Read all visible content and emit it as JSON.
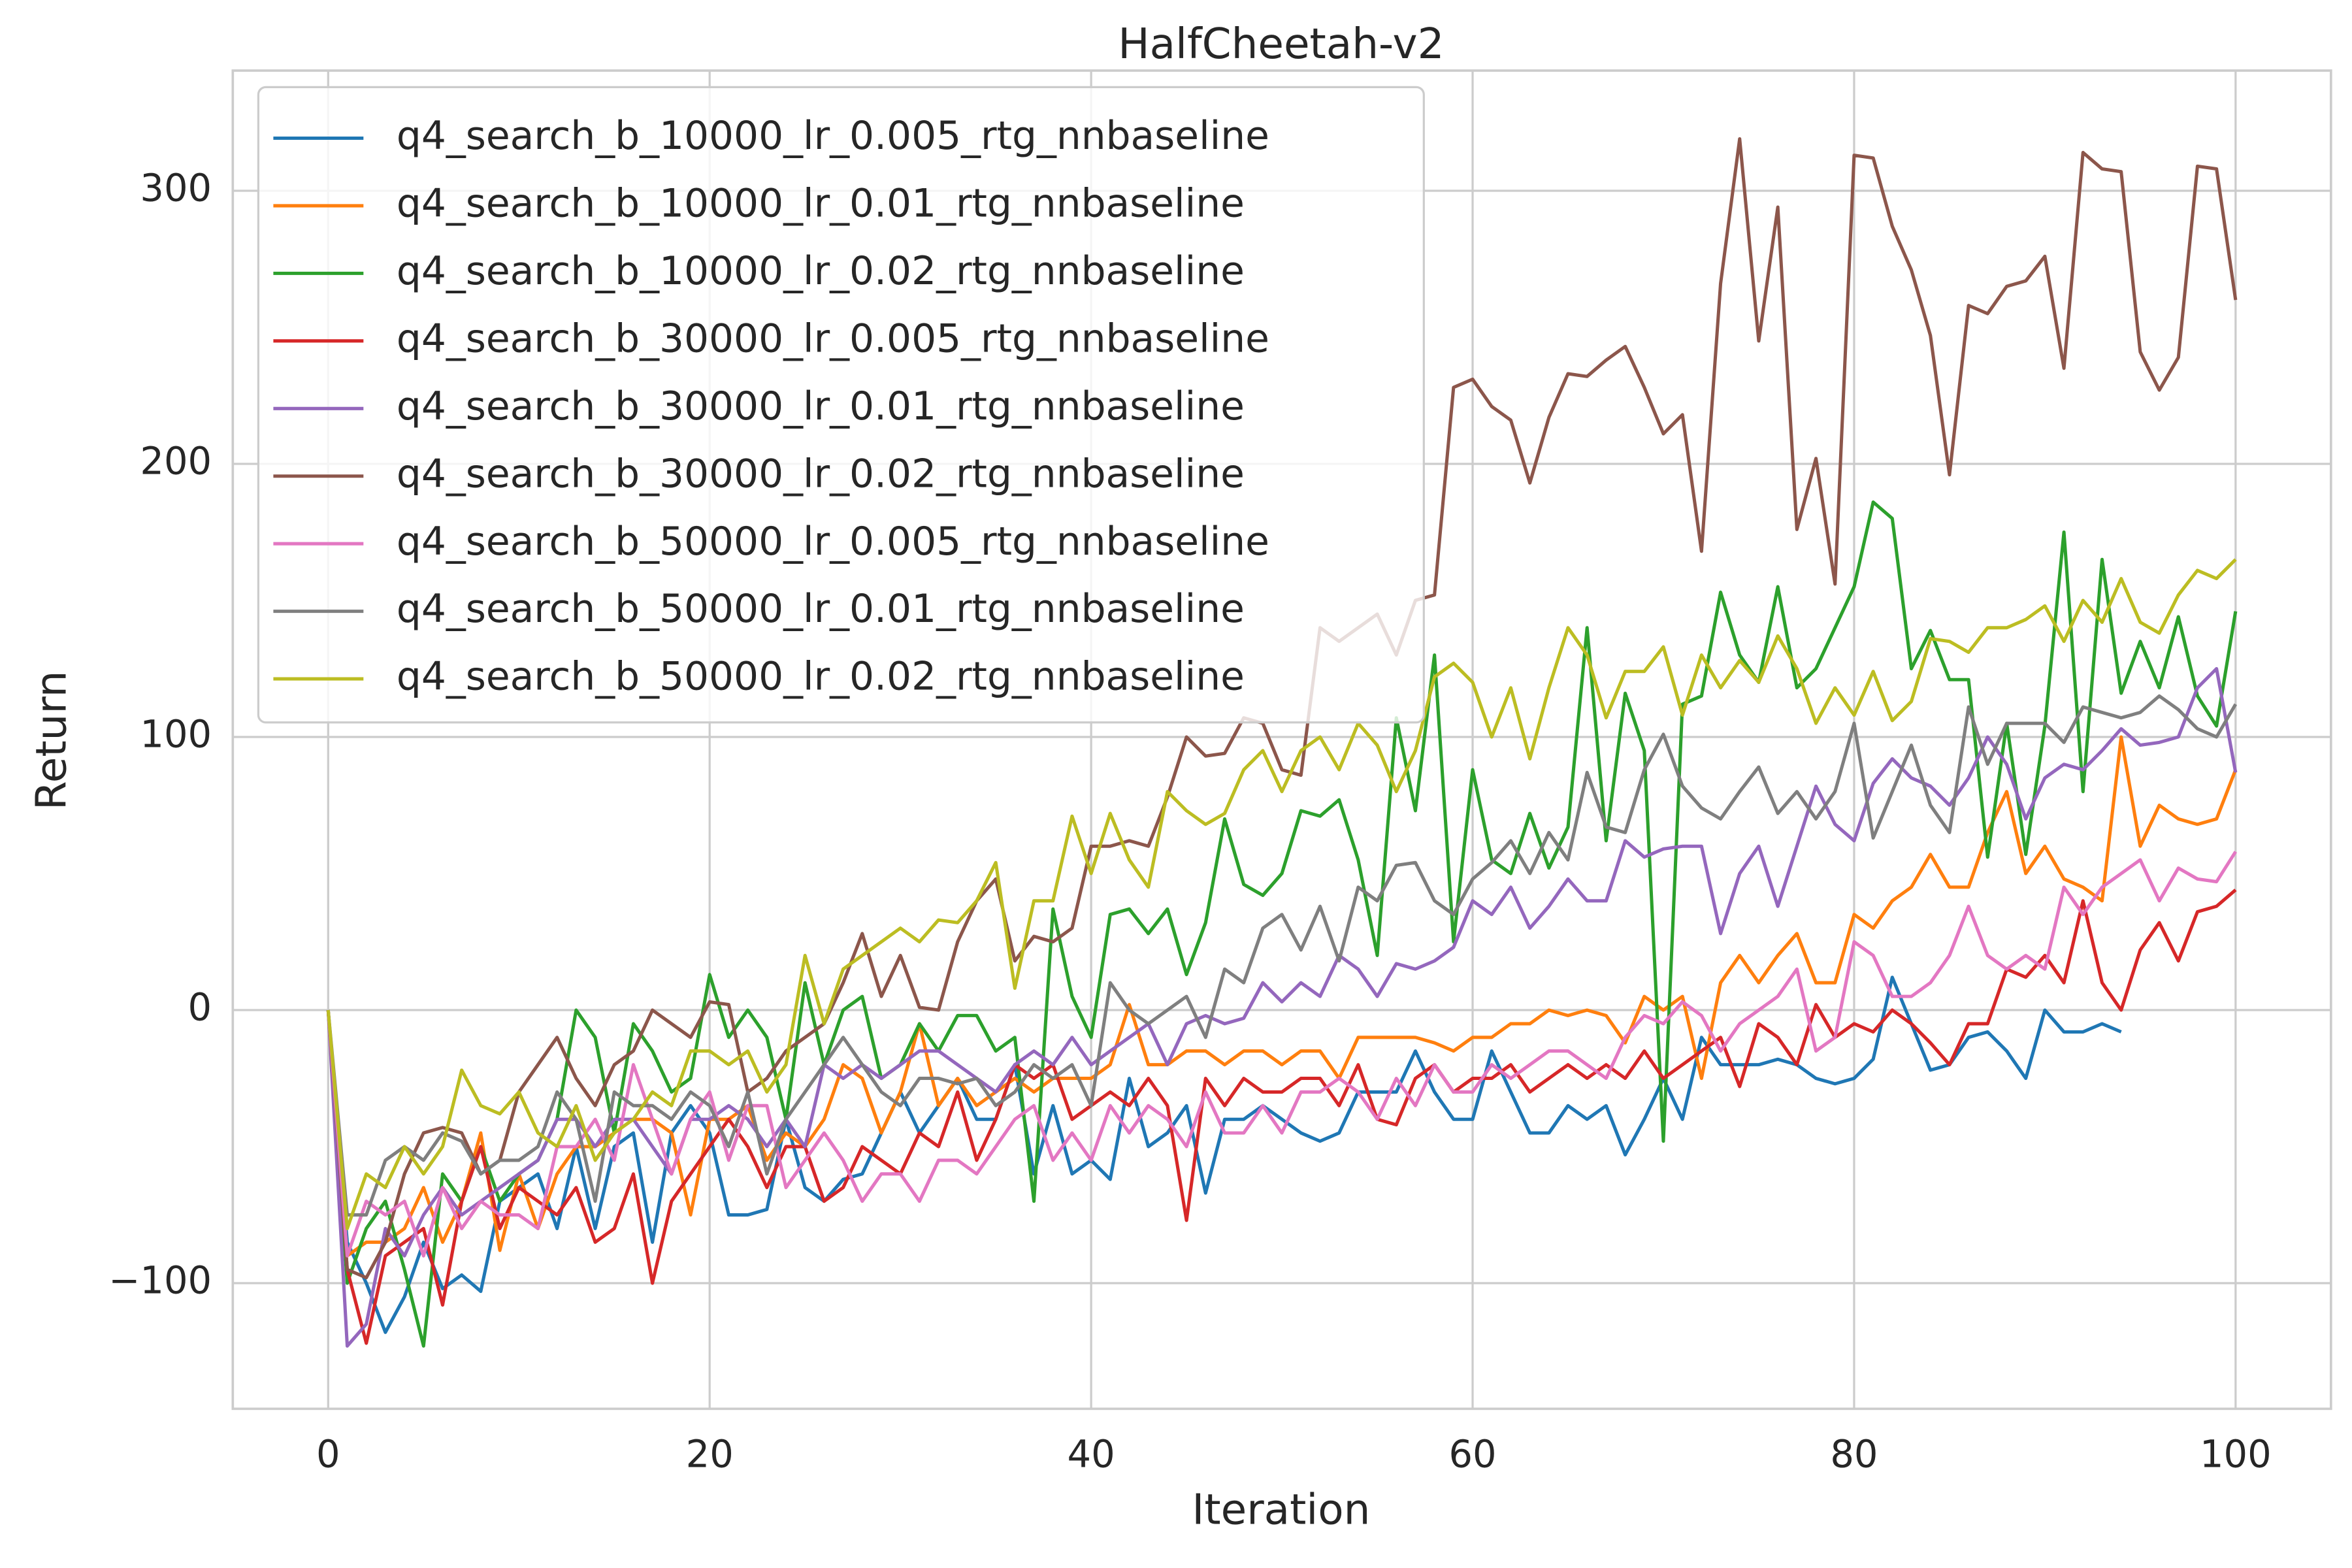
{
  "chart_data": {
    "type": "line",
    "title": "HalfCheetah-v2",
    "xlabel": "Iteration",
    "ylabel": "Return",
    "xlim": [
      -5,
      105
    ],
    "xticks": [
      0,
      20,
      40,
      60,
      80,
      100
    ],
    "ylim": [
      -146,
      344
    ],
    "yticks": [
      {
        "value": -100,
        "label": "−100"
      },
      0,
      100,
      200,
      300
    ],
    "grid": true,
    "legend": "upper left",
    "x": [
      0,
      1,
      2,
      3,
      4,
      5,
      6,
      7,
      8,
      9,
      10,
      11,
      12,
      13,
      14,
      15,
      16,
      17,
      18,
      19,
      20,
      21,
      22,
      23,
      24,
      25,
      26,
      27,
      28,
      29,
      30,
      31,
      32,
      33,
      34,
      35,
      36,
      37,
      38,
      39,
      40,
      41,
      42,
      43,
      44,
      45,
      46,
      47,
      48,
      49,
      50,
      51,
      52,
      53,
      54,
      55,
      56,
      57,
      58,
      59,
      60,
      61,
      62,
      63,
      64,
      65,
      66,
      67,
      68,
      69,
      70,
      71,
      72,
      73,
      74,
      75,
      76,
      77,
      78,
      79,
      80,
      81,
      82,
      83,
      84,
      85,
      86,
      87,
      88,
      89,
      90,
      91,
      92,
      93,
      94,
      95,
      96,
      97,
      98,
      99,
      100
    ],
    "series": [
      {
        "name": "q4_search_b_10000_lr_0.005_rtg_nnbaseline",
        "color": "#1f77b4",
        "values": [
          0,
          -85,
          -100,
          -118,
          -105,
          -85,
          -102,
          -97,
          -103,
          -70,
          -65,
          -60,
          -80,
          -50,
          -80,
          -50,
          -45,
          -85,
          -45,
          -35,
          -45,
          -75,
          -75,
          -73,
          -40,
          -65,
          -70,
          -62,
          -60,
          -45,
          -30,
          -45,
          -35,
          -25,
          -40,
          -40,
          -20,
          -60,
          -35,
          -60,
          -55,
          -62,
          -25,
          -50,
          -45,
          -35,
          -67,
          -40,
          -40,
          -35,
          -40,
          -45,
          -48,
          -45,
          -30,
          -30,
          -30,
          -15,
          -30,
          -40,
          -40,
          -15,
          -30,
          -45,
          -45,
          -35,
          -40,
          -35,
          -53,
          -40,
          -25,
          -40,
          -10,
          -20,
          -20,
          -20,
          -18,
          -20,
          -25,
          -27,
          -25,
          -18,
          12,
          -5,
          -22,
          -20,
          -10,
          -8,
          -15,
          -25,
          0,
          -8,
          -8,
          -5,
          -8,
          null,
          null,
          null,
          null,
          null,
          null
        ]
      },
      {
        "name": "q4_search_b_10000_lr_0.01_rtg_nnbaseline",
        "color": "#ff7f0e",
        "values": [
          0,
          -90,
          -85,
          -85,
          -80,
          -65,
          -85,
          -70,
          -45,
          -88,
          -60,
          -80,
          -60,
          -50,
          -50,
          -45,
          -40,
          -40,
          -45,
          -75,
          -40,
          -40,
          -35,
          -55,
          -45,
          -50,
          -40,
          -20,
          -25,
          -45,
          -30,
          -5,
          -35,
          -25,
          -35,
          -30,
          -25,
          -30,
          -25,
          -25,
          -25,
          -20,
          2,
          -20,
          -20,
          -15,
          -15,
          -20,
          -15,
          -15,
          -20,
          -15,
          -15,
          -25,
          -10,
          -10,
          -10,
          -10,
          -12,
          -15,
          -10,
          -10,
          -5,
          -5,
          0,
          -2,
          0,
          -2,
          -12,
          5,
          0,
          5,
          -25,
          10,
          20,
          10,
          20,
          28,
          10,
          10,
          35,
          30,
          40,
          45,
          57,
          45,
          45,
          65,
          80,
          50,
          60,
          48,
          45,
          40,
          100,
          60,
          75,
          70,
          68,
          70,
          88
        ]
      },
      {
        "name": "q4_search_b_10000_lr_0.02_rtg_nnbaseline",
        "color": "#2ca02c",
        "values": [
          0,
          -100,
          -80,
          -70,
          -95,
          -123,
          -60,
          -70,
          -50,
          -70,
          -60,
          -55,
          -40,
          0,
          -10,
          -45,
          -5,
          -15,
          -30,
          -25,
          13,
          -10,
          0,
          -10,
          -40,
          10,
          -20,
          0,
          5,
          -25,
          -20,
          -5,
          -15,
          -2,
          -2,
          -15,
          -10,
          -70,
          37,
          5,
          -10,
          35,
          37,
          28,
          37,
          13,
          32,
          70,
          46,
          42,
          50,
          73,
          71,
          77,
          55,
          20,
          107,
          73,
          130,
          25,
          88,
          55,
          50,
          72,
          52,
          67,
          140,
          62,
          116,
          95,
          -48,
          112,
          115,
          153,
          130,
          120,
          155,
          118,
          125,
          140,
          155,
          186,
          180,
          125,
          139,
          121,
          121,
          56,
          105,
          57,
          104,
          175,
          80,
          165,
          116,
          135,
          118,
          144,
          115,
          104,
          146
        ]
      },
      {
        "name": "q4_search_b_30000_lr_0.005_rtg_nnbaseline",
        "color": "#d62728",
        "values": [
          0,
          -95,
          -122,
          -90,
          -85,
          -80,
          -108,
          -70,
          -50,
          -80,
          -65,
          -70,
          -75,
          -65,
          -85,
          -80,
          -60,
          -100,
          -70,
          -60,
          -50,
          -40,
          -50,
          -65,
          -50,
          -50,
          -70,
          -65,
          -50,
          -55,
          -60,
          -45,
          -50,
          -30,
          -55,
          -40,
          -20,
          -25,
          -20,
          -40,
          -35,
          -30,
          -35,
          -25,
          -35,
          -77,
          -25,
          -35,
          -25,
          -30,
          -30,
          -25,
          -25,
          -35,
          -20,
          -40,
          -42,
          -25,
          -20,
          -30,
          -25,
          -25,
          -20,
          -30,
          -25,
          -20,
          -25,
          -20,
          -25,
          -15,
          -25,
          -20,
          -15,
          -10,
          -28,
          -5,
          -10,
          -20,
          2,
          -10,
          -5,
          -8,
          0,
          -5,
          -12,
          -20,
          -5,
          -5,
          15,
          12,
          20,
          10,
          40,
          10,
          0,
          22,
          32,
          18,
          36,
          38,
          44
        ]
      },
      {
        "name": "q4_search_b_30000_lr_0.01_rtg_nnbaseline",
        "color": "#9467bd",
        "values": [
          0,
          -123,
          -115,
          -80,
          -90,
          -75,
          -65,
          -75,
          -70,
          -65,
          -60,
          -55,
          -40,
          -40,
          -50,
          -40,
          -40,
          -50,
          -60,
          -40,
          -40,
          -35,
          -40,
          -50,
          -40,
          -50,
          -20,
          -25,
          -20,
          -25,
          -20,
          -15,
          -15,
          -20,
          -25,
          -30,
          -20,
          -15,
          -20,
          -10,
          -20,
          -15,
          -10,
          -5,
          -20,
          -5,
          -2,
          -5,
          -3,
          10,
          3,
          10,
          5,
          20,
          15,
          5,
          17,
          15,
          18,
          23,
          40,
          35,
          45,
          30,
          38,
          48,
          40,
          40,
          62,
          56,
          59,
          60,
          60,
          28,
          50,
          60,
          38,
          60,
          82,
          68,
          62,
          83,
          92,
          85,
          82,
          75,
          85,
          100,
          90,
          70,
          85,
          90,
          88,
          95,
          103,
          97,
          98,
          100,
          118,
          125,
          87
        ]
      },
      {
        "name": "q4_search_b_30000_lr_0.02_rtg_nnbaseline",
        "color": "#8c564b",
        "values": [
          0,
          -95,
          -98,
          -85,
          -60,
          -45,
          -43,
          -45,
          -60,
          -55,
          -30,
          -20,
          -10,
          -25,
          -35,
          -20,
          -15,
          0,
          -5,
          -10,
          3,
          2,
          -30,
          -25,
          -15,
          -10,
          -5,
          10,
          28,
          5,
          20,
          1,
          0,
          25,
          40,
          48,
          18,
          27,
          25,
          30,
          60,
          60,
          62,
          60,
          78,
          100,
          93,
          94,
          107,
          105,
          88,
          86,
          140,
          135,
          140,
          145,
          130,
          150,
          152,
          228,
          231,
          221,
          216,
          193,
          217,
          233,
          232,
          238,
          243,
          228,
          211,
          218,
          168,
          266,
          319,
          245,
          294,
          176,
          202,
          156,
          313,
          312,
          287,
          271,
          247,
          196,
          258,
          255,
          265,
          267,
          276,
          235,
          314,
          308,
          307,
          241,
          227,
          239,
          309,
          308,
          260
        ]
      },
      {
        "name": "q4_search_b_50000_lr_0.005_rtg_nnbaseline",
        "color": "#e377c2",
        "values": [
          0,
          -90,
          -70,
          -75,
          -70,
          -90,
          -65,
          -80,
          -70,
          -75,
          -75,
          -80,
          -50,
          -50,
          -40,
          -55,
          -20,
          -40,
          -60,
          -40,
          -30,
          -55,
          -35,
          -35,
          -65,
          -55,
          -45,
          -55,
          -70,
          -60,
          -60,
          -70,
          -55,
          -55,
          -60,
          -50,
          -40,
          -35,
          -55,
          -45,
          -55,
          -35,
          -45,
          -35,
          -40,
          -50,
          -30,
          -45,
          -45,
          -35,
          -45,
          -30,
          -30,
          -25,
          -30,
          -40,
          -25,
          -35,
          -20,
          -30,
          -30,
          -20,
          -25,
          -20,
          -15,
          -15,
          -20,
          -25,
          -10,
          -2,
          -5,
          3,
          -2,
          -15,
          -5,
          0,
          5,
          15,
          -15,
          -10,
          25,
          20,
          5,
          5,
          10,
          20,
          38,
          20,
          15,
          20,
          15,
          45,
          35,
          45,
          50,
          55,
          40,
          52,
          48,
          47,
          58
        ]
      },
      {
        "name": "q4_search_b_50000_lr_0.01_rtg_nnbaseline",
        "color": "#7f7f7f",
        "values": [
          0,
          -75,
          -75,
          -55,
          -50,
          -55,
          -45,
          -48,
          -60,
          -55,
          -55,
          -50,
          -30,
          -40,
          -70,
          -30,
          -35,
          -35,
          -40,
          -30,
          -35,
          -50,
          -30,
          -60,
          -40,
          -30,
          -20,
          -10,
          -20,
          -30,
          -35,
          -25,
          -25,
          -27,
          -25,
          -35,
          -30,
          -20,
          -25,
          -20,
          -35,
          10,
          0,
          -5,
          0,
          5,
          -10,
          15,
          10,
          30,
          35,
          22,
          38,
          18,
          45,
          40,
          53,
          54,
          40,
          35,
          48,
          54,
          62,
          50,
          65,
          55,
          87,
          67,
          65,
          88,
          101,
          82,
          74,
          70,
          80,
          89,
          72,
          80,
          70,
          80,
          105,
          63,
          80,
          97,
          75,
          65,
          111,
          90,
          105,
          105,
          105,
          98,
          111,
          109,
          107,
          109,
          115,
          110,
          103,
          100,
          112
        ]
      },
      {
        "name": "q4_search_b_50000_lr_0.02_rtg_nnbaseline",
        "color": "#bcbd22",
        "values": [
          0,
          -80,
          -60,
          -65,
          -50,
          -60,
          -50,
          -22,
          -35,
          -38,
          -30,
          -45,
          -50,
          -35,
          -55,
          -45,
          -40,
          -30,
          -35,
          -15,
          -15,
          -20,
          -15,
          -30,
          -20,
          20,
          -5,
          15,
          20,
          25,
          30,
          25,
          33,
          32,
          40,
          54,
          8,
          40,
          40,
          71,
          50,
          72,
          55,
          45,
          80,
          73,
          68,
          72,
          88,
          95,
          80,
          95,
          100,
          88,
          105,
          97,
          80,
          95,
          122,
          127,
          120,
          100,
          118,
          92,
          118,
          140,
          130,
          107,
          124,
          124,
          133,
          108,
          130,
          118,
          128,
          120,
          137,
          125,
          105,
          118,
          108,
          124,
          106,
          113,
          136,
          135,
          131,
          140,
          140,
          143,
          148,
          135,
          150,
          142,
          158,
          142,
          138,
          152,
          161,
          158,
          165
        ]
      }
    ]
  }
}
